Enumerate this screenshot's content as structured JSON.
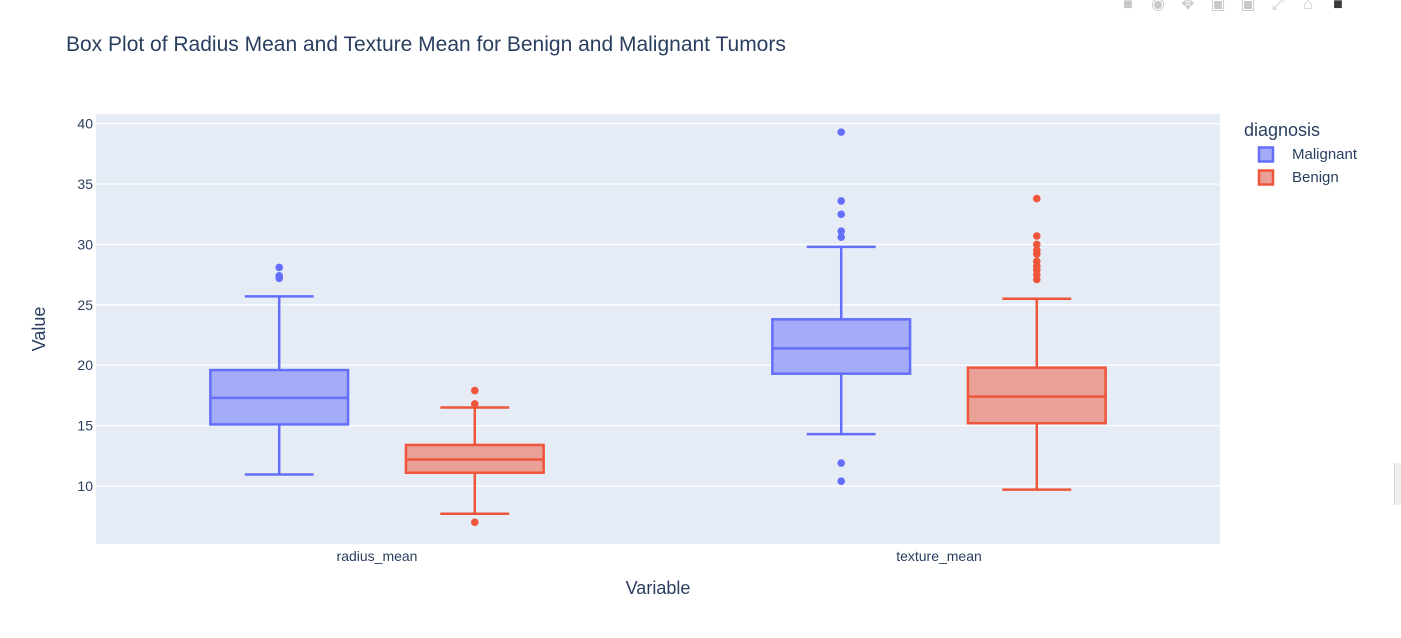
{
  "chart_data": {
    "type": "box",
    "title": "Box Plot of Radius Mean and Texture Mean for Benign and Malignant Tumors",
    "xlabel": "Variable",
    "ylabel": "Value",
    "categories": [
      "radius_mean",
      "texture_mean"
    ],
    "ylim": [
      5.2,
      40.8
    ],
    "yticks": [
      10,
      15,
      20,
      25,
      30,
      35,
      40
    ],
    "grid": true,
    "legend": {
      "title": "diagnosis",
      "placement": "right"
    },
    "series": [
      {
        "name": "Malignant",
        "color": "#636efa",
        "fill": "#a4abf8",
        "boxes": [
          {
            "category": "radius_mean",
            "min": 10.95,
            "q1": 15.1,
            "median": 17.3,
            "q3": 19.6,
            "max": 25.7,
            "outliers": [
              27.2,
              27.4,
              28.1
            ]
          },
          {
            "category": "texture_mean",
            "min": 14.3,
            "q1": 19.3,
            "median": 21.4,
            "q3": 23.8,
            "max": 29.8,
            "outliers": [
              10.4,
              11.9,
              30.6,
              31.1,
              32.5,
              33.6,
              39.3
            ]
          }
        ]
      },
      {
        "name": "Benign",
        "color": "#ef553b",
        "fill": "#e9a097",
        "boxes": [
          {
            "category": "radius_mean",
            "min": 7.7,
            "q1": 11.1,
            "median": 12.2,
            "q3": 13.4,
            "max": 16.5,
            "outliers": [
              7.0,
              16.8,
              17.9
            ]
          },
          {
            "category": "texture_mean",
            "min": 9.7,
            "q1": 15.2,
            "median": 17.4,
            "q3": 19.8,
            "max": 25.5,
            "outliers": [
              27.1,
              27.5,
              27.9,
              28.2,
              28.6,
              29.2,
              29.5,
              30.0,
              30.7,
              33.8
            ]
          }
        ]
      }
    ]
  },
  "modebar": {
    "icons": [
      "camera-icon",
      "zoom-icon",
      "pan-icon",
      "zoom-in-icon",
      "zoom-out-icon",
      "autoscale-icon",
      "home-icon",
      "plotly-logo-icon"
    ]
  }
}
